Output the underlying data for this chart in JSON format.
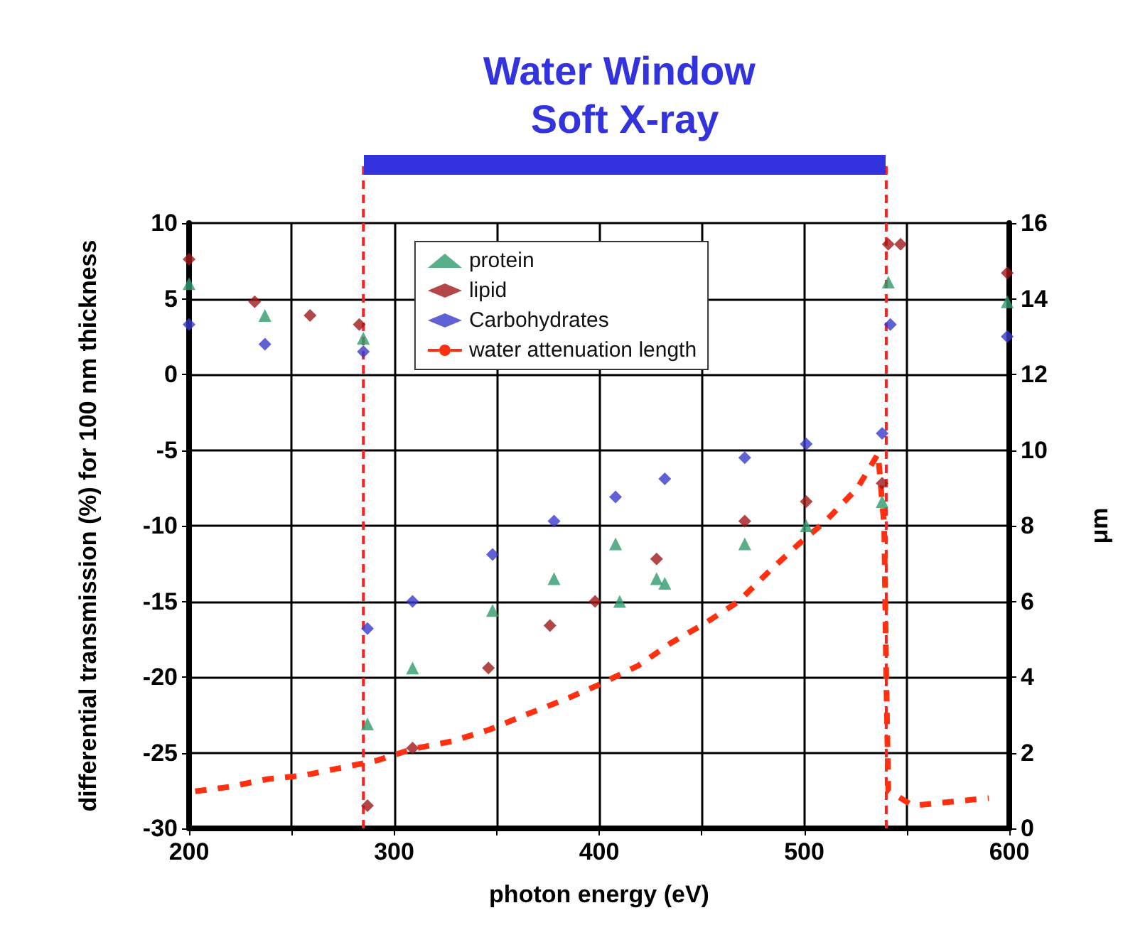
{
  "chart_data": {
    "type": "scatter",
    "title": "Water Window Soft X-ray",
    "xlabel": "photon energy (eV)",
    "ylabel": "differential transmission (%) for 100 nm thickness",
    "y2label": "μm",
    "xlim": [
      200,
      600
    ],
    "xticks": [
      200,
      {
        "value": 250,
        "label": null
      },
      300,
      {
        "value": 350,
        "label": null
      },
      400,
      {
        "value": 450,
        "label": null
      },
      500,
      {
        "value": 550,
        "label": null
      },
      600
    ],
    "ylim": [
      -30,
      10
    ],
    "yticks": [
      -30,
      -25,
      -20,
      -15,
      -10,
      -5,
      0,
      5,
      10
    ],
    "y2lim": [
      0,
      16
    ],
    "y2ticks": [
      0,
      2,
      4,
      6,
      8,
      10,
      12,
      14,
      16
    ],
    "grid": true,
    "legend": "top",
    "series": [
      {
        "name": "protein",
        "marker": "triangle",
        "color": "#2e9b6b",
        "x": [
          200,
          237,
          285,
          286,
          287,
          309,
          348,
          378,
          408,
          409,
          410,
          428,
          432,
          471,
          501,
          538,
          539,
          541,
          599
        ],
        "values": [
          6.0,
          3.9,
          2.4,
          null,
          -23.1,
          -19.4,
          -15.6,
          -13.5,
          -11.2,
          null,
          -15.0,
          -13.5,
          -13.8,
          -11.2,
          -10.0,
          -8.4,
          null,
          6.1,
          4.8
        ]
      },
      {
        "name": "lipid",
        "marker": "diamond",
        "color": "#a01818",
        "x": [
          200,
          232,
          259,
          283,
          286,
          287,
          309,
          346,
          376,
          398,
          428,
          471,
          501,
          538,
          539,
          541,
          547,
          599
        ],
        "values": [
          7.6,
          4.8,
          3.9,
          3.3,
          null,
          -28.5,
          -24.7,
          -19.4,
          -16.6,
          -15.0,
          -12.2,
          -9.7,
          -8.4,
          -7.2,
          null,
          8.6,
          8.6,
          6.7
        ]
      },
      {
        "name": "Carbohydrates",
        "marker": "diamond",
        "color": "#3a3acc",
        "x": [
          200,
          237,
          285,
          286,
          287,
          309,
          348,
          378,
          408,
          432,
          471,
          501,
          538,
          539,
          542,
          599
        ],
        "values": [
          3.3,
          2.0,
          1.5,
          null,
          -16.8,
          -15.0,
          -11.9,
          -9.7,
          -8.1,
          -6.9,
          -5.5,
          -4.6,
          -3.9,
          null,
          3.3,
          2.5
        ]
      },
      {
        "name": "water attenuation length",
        "type": "line",
        "axis": "y2",
        "marker": "none",
        "line_style": "dashed",
        "color": "#ff3010",
        "x": [
          203,
          220,
          238,
          256,
          274,
          292,
          309,
          328,
          346,
          364,
          383,
          400,
          419,
          435,
          451,
          468,
          483,
          497,
          510,
          526,
          536,
          539,
          540,
          541,
          553,
          571,
          590
        ],
        "values": [
          0.98,
          1.1,
          1.3,
          1.4,
          1.6,
          1.8,
          2.1,
          2.3,
          2.6,
          3.0,
          3.4,
          3.8,
          4.3,
          4.9,
          5.4,
          6.0,
          6.8,
          7.5,
          8.1,
          9.0,
          9.9,
          8.0,
          4.0,
          1.0,
          0.6,
          0.7,
          0.8
        ]
      }
    ],
    "ref_lines": [
      {
        "axis": "x",
        "value": 285,
        "color": "#ff2020",
        "line_style": "dashed"
      },
      {
        "axis": "x",
        "value": 540,
        "color": "#ff2020",
        "line_style": "dashed"
      }
    ]
  }
}
